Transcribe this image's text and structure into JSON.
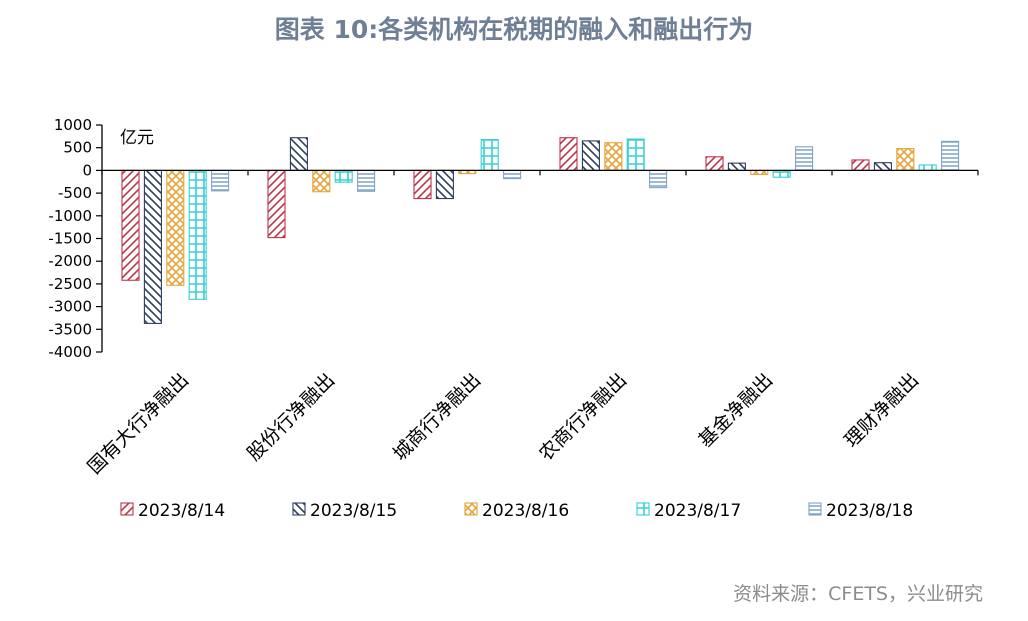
{
  "title": "图表 10:各类机构在税期的融入和融出行为",
  "source": "资料来源：CFETS，兴业研究",
  "chart_data": {
    "type": "bar",
    "unit_label": "亿元",
    "categories": [
      "国有大行净融出",
      "股份行净融出",
      "城商行净融出",
      "农商行净融出",
      "基金净融出",
      "理财净融出"
    ],
    "series": [
      {
        "name": "2023/8/14",
        "color": "#c0354a",
        "pattern": "diag-right",
        "values": [
          -2420,
          -1480,
          -620,
          720,
          300,
          230
        ]
      },
      {
        "name": "2023/8/15",
        "color": "#2e3f5c",
        "pattern": "diag-left",
        "values": [
          -3370,
          720,
          -620,
          650,
          160,
          170
        ]
      },
      {
        "name": "2023/8/16",
        "color": "#e8a33a",
        "pattern": "cross",
        "values": [
          -2530,
          -470,
          -70,
          610,
          -90,
          480
        ]
      },
      {
        "name": "2023/8/17",
        "color": "#35d0d6",
        "pattern": "grid",
        "values": [
          -2840,
          -260,
          680,
          690,
          -150,
          120
        ]
      },
      {
        "name": "2023/8/18",
        "color": "#7fa3c9",
        "pattern": "horiz",
        "values": [
          -450,
          -460,
          -180,
          -380,
          520,
          640
        ]
      }
    ],
    "ylim": [
      -4000,
      1000
    ],
    "yticks": [
      1000,
      500,
      0,
      -500,
      -1000,
      -1500,
      -2000,
      -2500,
      -3000,
      -3500,
      -4000
    ],
    "legend_position": "bottom",
    "grid": false
  }
}
